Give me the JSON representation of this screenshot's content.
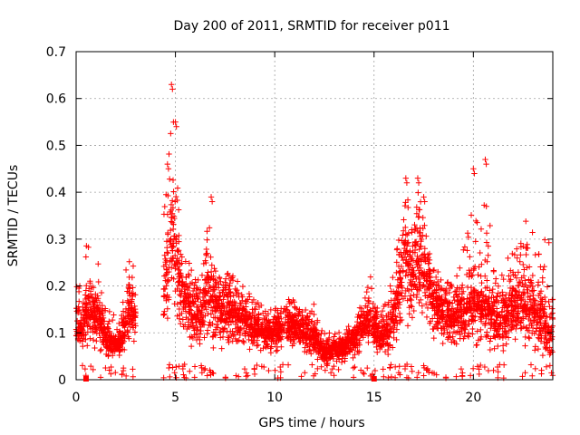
{
  "chart_data": {
    "type": "scatter",
    "title": "Day 200 of 2011, SRMTID for receiver p011",
    "xlabel": "GPS time / hours",
    "ylabel": "SRMTID / TECUs",
    "xlim": [
      0,
      24
    ],
    "ylim": [
      0,
      0.7
    ],
    "xticks": [
      0,
      5,
      10,
      15,
      20
    ],
    "yticks": [
      0,
      0.1,
      0.2,
      0.3,
      0.4,
      0.5,
      0.6,
      0.7
    ],
    "grid": true,
    "marker": "+",
    "color": "#ff0000",
    "gap_markers_x": [
      0.5,
      15.0
    ],
    "profile": [
      [
        0.0,
        0.1,
        0.06,
        0.22
      ],
      [
        0.25,
        0.09,
        0.05,
        0.2
      ],
      [
        0.5,
        0.12,
        0.05,
        0.3
      ],
      [
        0.75,
        0.14,
        0.05,
        0.3
      ],
      [
        1.0,
        0.13,
        0.05,
        0.28
      ],
      [
        1.25,
        0.1,
        0.05,
        0.24
      ],
      [
        1.5,
        0.08,
        0.04,
        0.2
      ],
      [
        1.75,
        0.06,
        0.04,
        0.15
      ],
      [
        2.0,
        0.06,
        0.04,
        0.14
      ],
      [
        2.25,
        0.07,
        0.04,
        0.13
      ],
      [
        2.5,
        0.12,
        0.04,
        0.25
      ],
      [
        2.75,
        0.15,
        0.04,
        0.29
      ],
      [
        3.0,
        0.12,
        0.04,
        0.22
      ],
      [
        4.4,
        0.15,
        0.06,
        0.37
      ],
      [
        4.6,
        0.22,
        0.08,
        0.46
      ],
      [
        4.8,
        0.3,
        0.1,
        0.63
      ],
      [
        5.0,
        0.25,
        0.1,
        0.55
      ],
      [
        5.2,
        0.18,
        0.07,
        0.35
      ],
      [
        5.4,
        0.16,
        0.06,
        0.28
      ],
      [
        5.7,
        0.14,
        0.05,
        0.25
      ],
      [
        6.0,
        0.13,
        0.05,
        0.22
      ],
      [
        6.3,
        0.14,
        0.05,
        0.24
      ],
      [
        6.6,
        0.16,
        0.05,
        0.34
      ],
      [
        6.8,
        0.17,
        0.05,
        0.39
      ],
      [
        7.0,
        0.15,
        0.05,
        0.24
      ],
      [
        7.5,
        0.15,
        0.05,
        0.24
      ],
      [
        8.0,
        0.14,
        0.05,
        0.22
      ],
      [
        8.5,
        0.12,
        0.05,
        0.2
      ],
      [
        9.0,
        0.1,
        0.05,
        0.18
      ],
      [
        9.5,
        0.09,
        0.05,
        0.15
      ],
      [
        10.0,
        0.09,
        0.05,
        0.15
      ],
      [
        10.5,
        0.1,
        0.05,
        0.18
      ],
      [
        11.0,
        0.1,
        0.05,
        0.17
      ],
      [
        11.5,
        0.09,
        0.05,
        0.15
      ],
      [
        12.0,
        0.08,
        0.03,
        0.17
      ],
      [
        12.5,
        0.05,
        0.02,
        0.1
      ],
      [
        13.0,
        0.06,
        0.03,
        0.1
      ],
      [
        13.5,
        0.07,
        0.03,
        0.11
      ],
      [
        14.0,
        0.08,
        0.04,
        0.13
      ],
      [
        14.5,
        0.1,
        0.05,
        0.18
      ],
      [
        14.8,
        0.12,
        0.06,
        0.24
      ],
      [
        15.3,
        0.08,
        0.03,
        0.14
      ],
      [
        15.7,
        0.1,
        0.03,
        0.19
      ],
      [
        16.0,
        0.13,
        0.04,
        0.26
      ],
      [
        16.3,
        0.18,
        0.06,
        0.33
      ],
      [
        16.6,
        0.25,
        0.08,
        0.43
      ],
      [
        16.9,
        0.22,
        0.08,
        0.32
      ],
      [
        17.2,
        0.24,
        0.1,
        0.43
      ],
      [
        17.5,
        0.22,
        0.1,
        0.39
      ],
      [
        17.8,
        0.16,
        0.08,
        0.28
      ],
      [
        18.2,
        0.14,
        0.07,
        0.24
      ],
      [
        18.6,
        0.12,
        0.06,
        0.22
      ],
      [
        19.0,
        0.11,
        0.05,
        0.21
      ],
      [
        19.4,
        0.13,
        0.05,
        0.27
      ],
      [
        19.8,
        0.15,
        0.05,
        0.34
      ],
      [
        20.0,
        0.16,
        0.05,
        0.45
      ],
      [
        20.3,
        0.14,
        0.05,
        0.28
      ],
      [
        20.6,
        0.15,
        0.05,
        0.47
      ],
      [
        21.0,
        0.12,
        0.05,
        0.24
      ],
      [
        21.4,
        0.11,
        0.04,
        0.22
      ],
      [
        21.8,
        0.13,
        0.05,
        0.27
      ],
      [
        22.2,
        0.14,
        0.05,
        0.29
      ],
      [
        22.6,
        0.15,
        0.05,
        0.35
      ],
      [
        23.0,
        0.14,
        0.04,
        0.33
      ],
      [
        23.4,
        0.12,
        0.03,
        0.3
      ],
      [
        23.8,
        0.1,
        0.01,
        0.3
      ],
      [
        24.0,
        0.1,
        0.01,
        0.28
      ]
    ]
  }
}
